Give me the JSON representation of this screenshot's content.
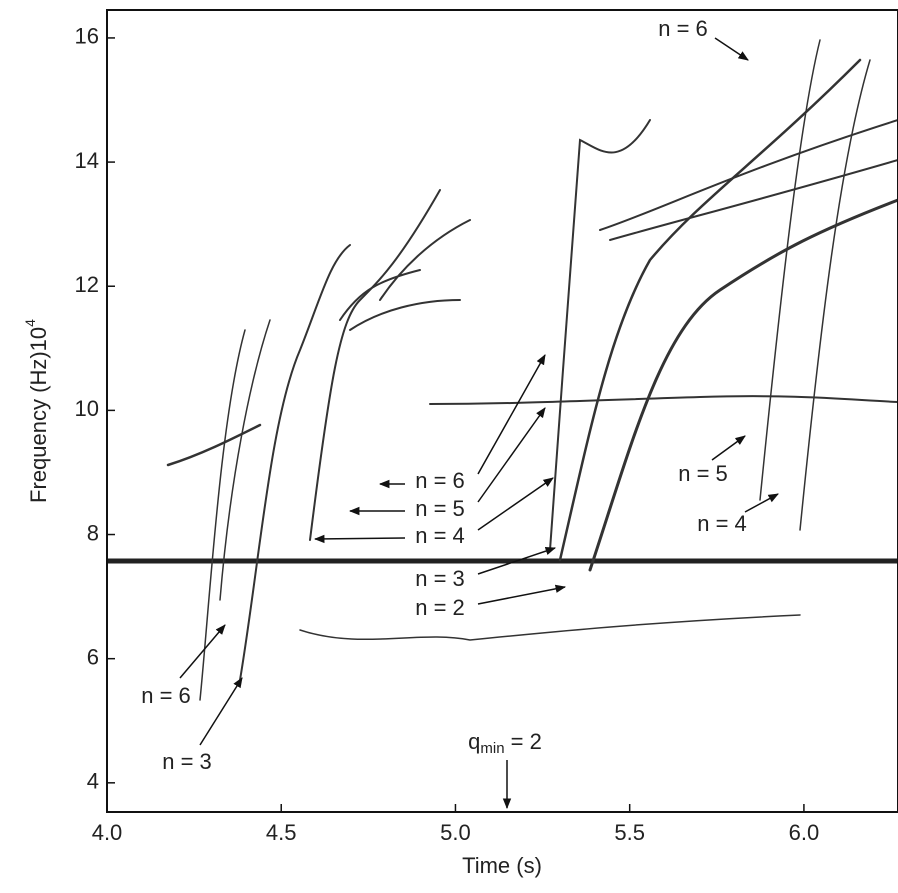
{
  "chart_data": {
    "type": "spectrogram",
    "xlabel": "Time (s)",
    "ylabel": "Frequency (Hz)10",
    "ylabel_exponent": "4",
    "xlim": [
      4.0,
      6.27
    ],
    "ylim": [
      3.53,
      16.45
    ],
    "xticks": [
      {
        "value": 4.0,
        "label": "4.0"
      },
      {
        "value": 4.5,
        "label": "4.5"
      },
      {
        "value": 5.0,
        "label": "5.0"
      },
      {
        "value": 5.5,
        "label": "5.5"
      },
      {
        "value": 6.0,
        "label": "6.0"
      }
    ],
    "yticks": [
      4,
      6,
      8,
      10,
      12,
      14,
      16
    ],
    "annotations": [
      "n = 6",
      "n = 6",
      "n = 5",
      "n = 4",
      "n = 3",
      "n = 2",
      "n = 5",
      "n = 4",
      "n = 6",
      "n = 3"
    ],
    "qmin": {
      "main": "q",
      "sub": "min",
      "rest": " = 2"
    }
  }
}
